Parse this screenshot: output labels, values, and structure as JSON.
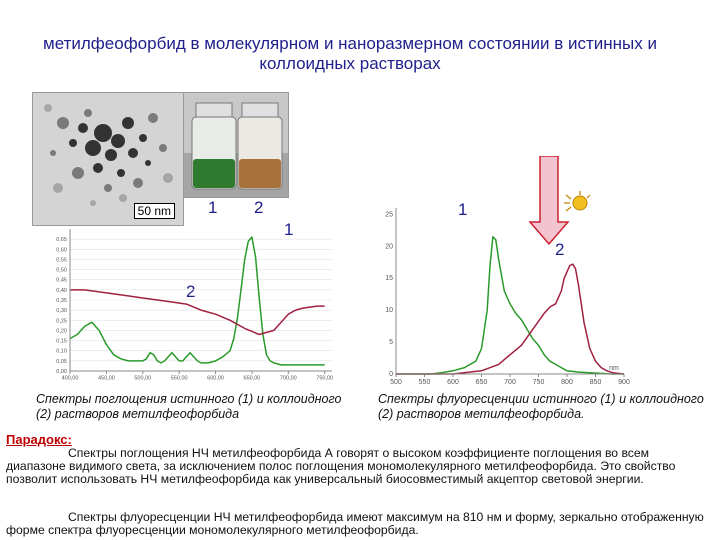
{
  "title": "метилфеофорбид в молекулярном и наноразмерном состоянии в истинных и коллоидных растворах",
  "micrograph_scale": "50 nm",
  "labels": {
    "abs_1": "1",
    "abs_2a": "2",
    "abs_2b": "2",
    "abs_1b": "1",
    "fl_1": "1",
    "fl_2": "2"
  },
  "colors": {
    "curve1": "#2a9a2a",
    "curve2": "#a02040",
    "arrow": "#e8b0c0",
    "heading": "#c00000",
    "title": "#20208c"
  },
  "absorption_caption": "Спектры поглощения истинного (1) и коллоидного (2) растворов метилфеофорбида",
  "fluorescence_caption": "Спектры флуоресценции истинного (1) и коллоидного (2) растворов метилфеофорбида.",
  "paradox_heading": "Парадокс:",
  "paradox_p1": "Спектры поглощения НЧ метилфеофорбида А говорят о высоком коэффициенте поглощения во всем диапазоне видимого света, за исключением полос поглощения мономолекулярного метилфеофорбида. Это свойство позволит использовать НЧ метилфеофорбида как универсальный биосовместимый акцептор световой энергии.",
  "paradox_p2": "Спектры флуоресценции НЧ метилфеофорбида имеют максимум на 810 нм и форму, зеркально отображенную форме спектра флуоресценции мономолекулярного метилфеофорбида.",
  "chart_data": [
    {
      "type": "line",
      "xlabel": "",
      "ylabel": "",
      "x_ticks": [
        "400,00",
        "450,00",
        "500,00",
        "550,00",
        "600,00",
        "650,00",
        "700,00",
        "750,00"
      ],
      "y_ticks": [
        "0,00",
        "0,05",
        "0,10",
        "0,15",
        "0,20",
        "0,25",
        "0,30",
        "0,35",
        "0,40",
        "0,45",
        "0,50",
        "0,55",
        "0,60",
        "0,65"
      ],
      "xlim": [
        400,
        760
      ],
      "ylim": [
        0,
        0.7
      ],
      "series": [
        {
          "name": "1",
          "x": [
            400,
            410,
            420,
            430,
            440,
            450,
            460,
            470,
            480,
            490,
            500,
            505,
            510,
            515,
            520,
            525,
            530,
            535,
            540,
            545,
            550,
            555,
            560,
            565,
            570,
            575,
            580,
            590,
            600,
            610,
            620,
            625,
            630,
            635,
            640,
            645,
            650,
            655,
            660,
            665,
            670,
            675,
            680,
            690,
            700,
            710,
            720,
            730,
            740,
            750
          ],
          "y": [
            0.16,
            0.18,
            0.22,
            0.24,
            0.2,
            0.13,
            0.08,
            0.06,
            0.05,
            0.05,
            0.05,
            0.06,
            0.09,
            0.08,
            0.05,
            0.04,
            0.05,
            0.07,
            0.09,
            0.07,
            0.05,
            0.05,
            0.07,
            0.09,
            0.07,
            0.05,
            0.04,
            0.04,
            0.05,
            0.07,
            0.1,
            0.16,
            0.26,
            0.4,
            0.55,
            0.64,
            0.66,
            0.56,
            0.36,
            0.18,
            0.08,
            0.05,
            0.04,
            0.03,
            0.03,
            0.03,
            0.03,
            0.03,
            0.03,
            0.03
          ]
        },
        {
          "name": "2",
          "x": [
            400,
            420,
            440,
            460,
            480,
            500,
            520,
            540,
            560,
            580,
            600,
            620,
            640,
            660,
            680,
            690,
            700,
            710,
            720,
            740,
            750
          ],
          "y": [
            0.4,
            0.4,
            0.39,
            0.38,
            0.37,
            0.36,
            0.35,
            0.34,
            0.33,
            0.3,
            0.28,
            0.25,
            0.21,
            0.18,
            0.2,
            0.24,
            0.28,
            0.3,
            0.31,
            0.32,
            0.32
          ]
        }
      ]
    },
    {
      "type": "line",
      "xlabel": "",
      "ylabel": "",
      "x_unit_label": "nm",
      "x_ticks": [
        "500",
        "550",
        "600",
        "650",
        "700",
        "750",
        "800",
        "850",
        "900"
      ],
      "y_ticks": [
        "0",
        "5",
        "10",
        "15",
        "20",
        "25"
      ],
      "xlim": [
        500,
        900
      ],
      "ylim": [
        0,
        26
      ],
      "series": [
        {
          "name": "1",
          "x": [
            500,
            520,
            540,
            560,
            580,
            600,
            620,
            640,
            650,
            660,
            665,
            670,
            675,
            680,
            690,
            700,
            710,
            720,
            730,
            740,
            750,
            760,
            770,
            780,
            790,
            800,
            820,
            840,
            860,
            880,
            900
          ],
          "y": [
            0,
            0,
            0,
            0,
            0.2,
            0.5,
            1,
            2,
            4,
            10,
            17,
            21.5,
            21,
            18,
            13,
            11,
            9.5,
            8.5,
            7,
            5.5,
            4.5,
            3,
            2,
            1.5,
            1,
            0.5,
            0.3,
            0.2,
            0.1,
            0,
            0
          ]
        },
        {
          "name": "2",
          "x": [
            500,
            600,
            650,
            680,
            700,
            720,
            740,
            760,
            770,
            780,
            790,
            795,
            800,
            805,
            810,
            815,
            820,
            830,
            840,
            850,
            860,
            870,
            880,
            900
          ],
          "y": [
            0,
            0,
            0.5,
            1.5,
            3,
            4.5,
            7,
            9.5,
            10.5,
            11,
            13,
            15,
            16,
            17,
            17.2,
            16.5,
            14,
            8,
            4,
            2,
            1,
            0.5,
            0.2,
            0
          ]
        }
      ]
    }
  ]
}
